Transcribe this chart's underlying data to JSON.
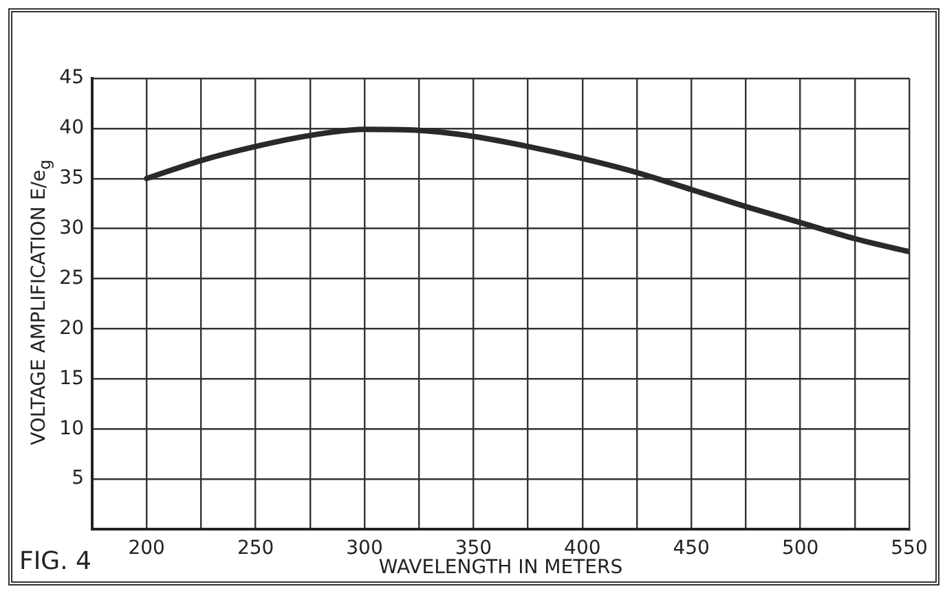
{
  "chart_data": {
    "type": "line",
    "xlabel": "WAVELENGTH IN METERS",
    "ylabel": "VOLTAGE AMPLIFICATION E/e$_{g}$",
    "annotations": [
      "FIG. 4"
    ],
    "x": [
      200,
      225,
      250,
      275,
      300,
      325,
      350,
      375,
      400,
      425,
      450,
      475,
      500,
      525,
      550
    ],
    "series": [
      {
        "color": "#2a2a2a",
        "values": [
          35,
          36.8,
          38.2,
          39.3,
          39.9,
          39.8,
          39.2,
          38.2,
          37,
          35.6,
          33.9,
          32.2,
          30.6,
          29,
          27.7
        ]
      }
    ],
    "xlim": [
      175,
      550
    ],
    "xticks": [
      {
        "value": 175,
        "label": null
      },
      200,
      {
        "value": 225,
        "label": null
      },
      250,
      {
        "value": 275,
        "label": null
      },
      300,
      {
        "value": 325,
        "label": null
      },
      350,
      {
        "value": 375,
        "label": null
      },
      400,
      {
        "value": 425,
        "label": null
      },
      450,
      {
        "value": 475,
        "label": null
      },
      500,
      {
        "value": 525,
        "label": null
      },
      550
    ],
    "ylim": [
      0,
      45
    ],
    "yticks": [
      {
        "value": 0,
        "label": null
      },
      5,
      10,
      15,
      20,
      25,
      30,
      35,
      40,
      45
    ],
    "grid": true,
    "marker": "none",
    "line_style": "solid",
    "legend": false
  }
}
